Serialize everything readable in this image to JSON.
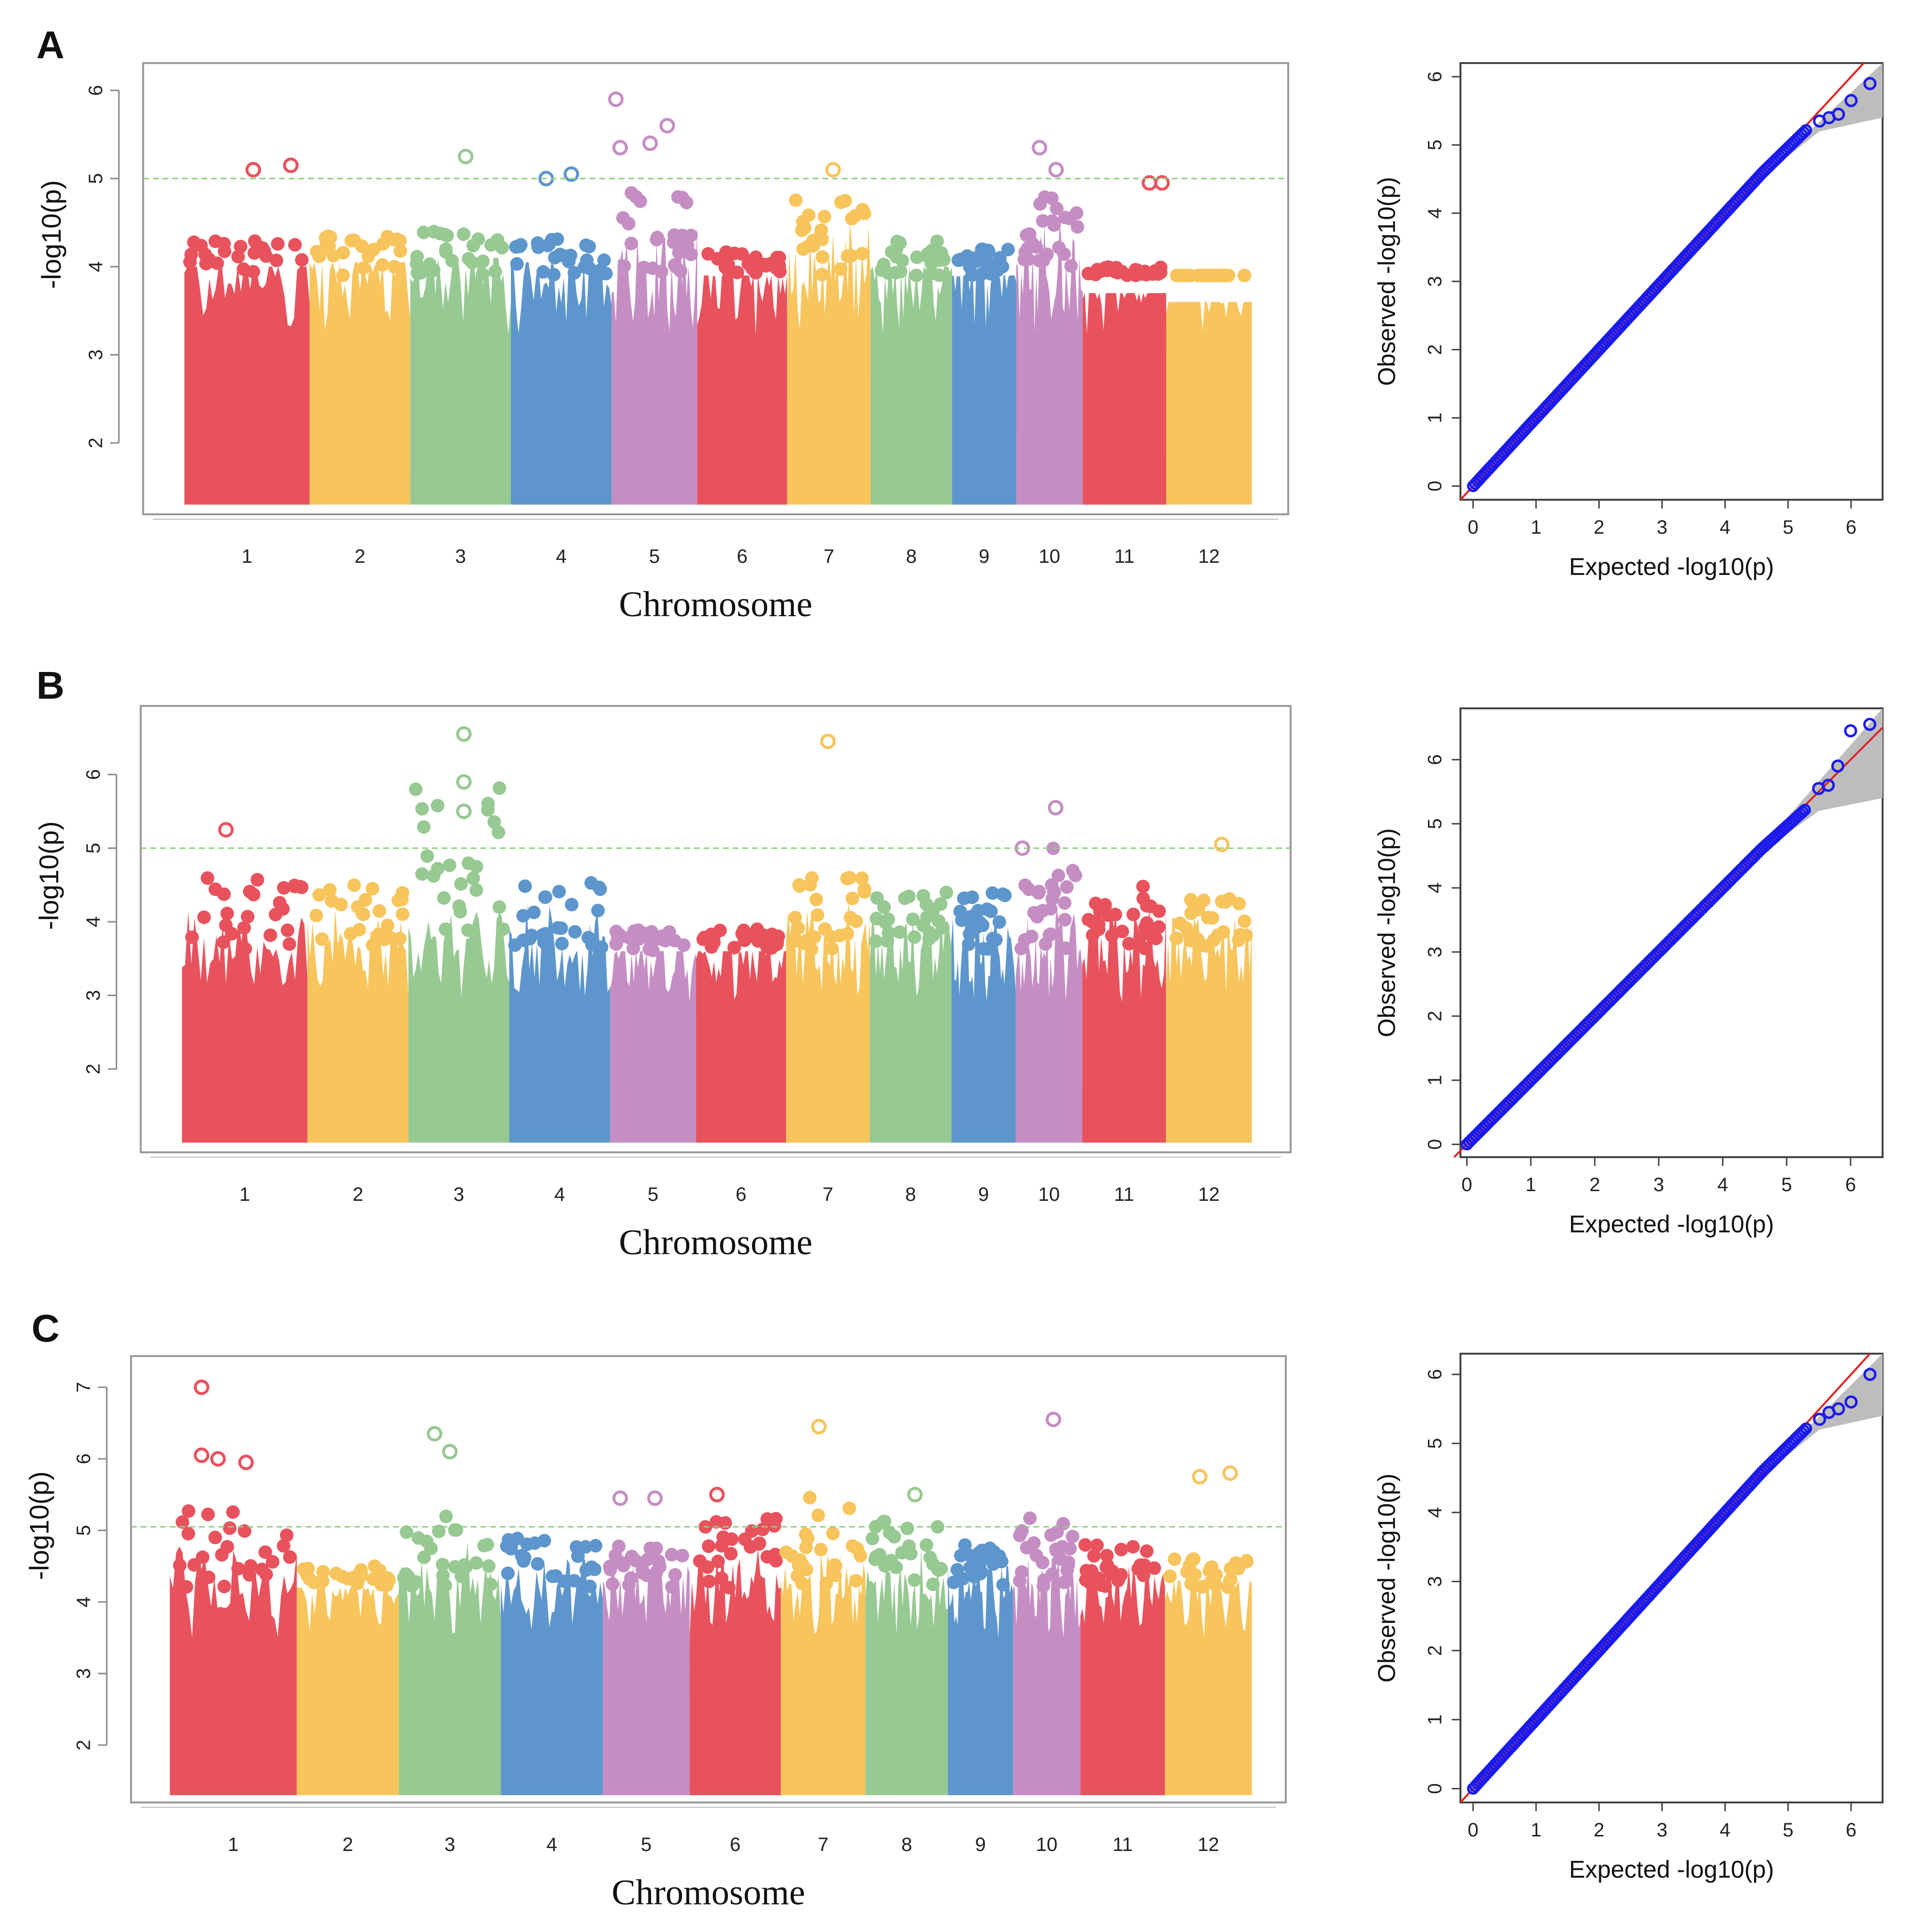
{
  "figure": {
    "panels": [
      "A",
      "B",
      "C"
    ],
    "chromosome_colors": [
      "#e8525d",
      "#f7c55c",
      "#97c992",
      "#5d96cc",
      "#c58ec3",
      "#e8525d",
      "#f7c55c",
      "#97c992",
      "#5d96cc",
      "#c58ec3",
      "#e8525d",
      "#f7c55c"
    ],
    "qq_point_color": "#1a1aee",
    "qq_line_color": "#e02020",
    "qq_band_color": "#bdbdbd",
    "threshold_color": "#8fcf7d"
  },
  "chart_data": [
    {
      "panel": "A",
      "type": "scatter",
      "subtype": "manhattan",
      "xlabel": "Chromosome",
      "ylabel": "-log10(p)",
      "categories": [
        "1",
        "2",
        "3",
        "4",
        "5",
        "6",
        "7",
        "8",
        "9",
        "10",
        "11",
        "12"
      ],
      "yticks": [
        "2",
        "3",
        "4",
        "5",
        "6"
      ],
      "ylim": [
        1.3,
        6.2
      ],
      "threshold": 5.0,
      "chromosome_top": [
        4.3,
        4.35,
        4.4,
        4.35,
        4.9,
        4.2,
        4.8,
        4.3,
        4.2,
        4.8,
        4.0,
        3.9
      ],
      "peaks": [
        {
          "chr": 1,
          "pos": 0.55,
          "value": 5.1
        },
        {
          "chr": 1,
          "pos": 0.85,
          "value": 5.15
        },
        {
          "chr": 3,
          "pos": 0.55,
          "value": 5.25
        },
        {
          "chr": 4,
          "pos": 0.35,
          "value": 5.0
        },
        {
          "chr": 4,
          "pos": 0.6,
          "value": 5.05
        },
        {
          "chr": 5,
          "pos": 0.05,
          "value": 5.9
        },
        {
          "chr": 5,
          "pos": 0.1,
          "value": 5.35
        },
        {
          "chr": 5,
          "pos": 0.45,
          "value": 5.4
        },
        {
          "chr": 5,
          "pos": 0.65,
          "value": 5.6
        },
        {
          "chr": 7,
          "pos": 0.55,
          "value": 5.1
        },
        {
          "chr": 10,
          "pos": 0.35,
          "value": 5.35
        },
        {
          "chr": 10,
          "pos": 0.6,
          "value": 5.1
        },
        {
          "chr": 11,
          "pos": 0.8,
          "value": 4.95
        },
        {
          "chr": 11,
          "pos": 0.95,
          "value": 4.95
        }
      ]
    },
    {
      "panel": "A",
      "type": "scatter",
      "subtype": "qq",
      "xlabel": "Expected -log10(p)",
      "ylabel": "Observed -log10(p)",
      "xticks": [
        "0",
        "1",
        "2",
        "3",
        "4",
        "5",
        "6"
      ],
      "yticks": [
        "0",
        "1",
        "2",
        "3",
        "4",
        "5",
        "6"
      ],
      "xlim": [
        -0.2,
        6.5
      ],
      "ylim": [
        -0.2,
        6.2
      ],
      "tail_points": [
        [
          5.5,
          5.35
        ],
        [
          5.65,
          5.4
        ],
        [
          5.8,
          5.45
        ],
        [
          6.0,
          5.65
        ],
        [
          6.3,
          5.9
        ]
      ]
    },
    {
      "panel": "B",
      "type": "scatter",
      "subtype": "manhattan",
      "xlabel": "Chromosome",
      "ylabel": "-log10(p)",
      "categories": [
        "1",
        "2",
        "3",
        "4",
        "5",
        "6",
        "7",
        "8",
        "9",
        "10",
        "11",
        "12"
      ],
      "yticks": [
        "2",
        "3",
        "4",
        "5",
        "6"
      ],
      "ylim": [
        1.0,
        6.8
      ],
      "threshold": 5.0,
      "chromosome_top": [
        4.6,
        4.5,
        5.9,
        4.55,
        3.9,
        3.9,
        4.6,
        4.5,
        4.4,
        5.0,
        4.55,
        4.35
      ],
      "peaks": [
        {
          "chr": 1,
          "pos": 0.35,
          "value": 5.25
        },
        {
          "chr": 3,
          "pos": 0.55,
          "value": 6.55
        },
        {
          "chr": 3,
          "pos": 0.55,
          "value": 5.9
        },
        {
          "chr": 3,
          "pos": 0.55,
          "value": 5.5
        },
        {
          "chr": 7,
          "pos": 0.5,
          "value": 6.45
        },
        {
          "chr": 10,
          "pos": 0.6,
          "value": 5.55
        },
        {
          "chr": 10,
          "pos": 0.1,
          "value": 5.0
        },
        {
          "chr": 12,
          "pos": 0.65,
          "value": 5.05
        }
      ]
    },
    {
      "panel": "B",
      "type": "scatter",
      "subtype": "qq",
      "xlabel": "Expected -log10(p)",
      "ylabel": "Observed -log10(p)",
      "xticks": [
        "0",
        "1",
        "2",
        "3",
        "4",
        "5",
        "6"
      ],
      "yticks": [
        "0",
        "1",
        "2",
        "3",
        "4",
        "5",
        "6"
      ],
      "xlim": [
        -0.1,
        6.5
      ],
      "ylim": [
        -0.2,
        6.8
      ],
      "tail_points": [
        [
          5.5,
          5.55
        ],
        [
          5.65,
          5.6
        ],
        [
          5.8,
          5.9
        ],
        [
          6.0,
          6.45
        ],
        [
          6.3,
          6.55
        ]
      ]
    },
    {
      "panel": "C",
      "type": "scatter",
      "subtype": "manhattan",
      "xlabel": "Chromosome",
      "ylabel": "-log10(p)",
      "categories": [
        "1",
        "2",
        "3",
        "4",
        "5",
        "6",
        "7",
        "8",
        "9",
        "10",
        "11",
        "12"
      ],
      "yticks": [
        "2",
        "3",
        "4",
        "5",
        "6",
        "7"
      ],
      "ylim": [
        1.3,
        7.3
      ],
      "threshold": 5.05,
      "chromosome_top": [
        5.3,
        4.5,
        5.3,
        4.9,
        4.8,
        5.2,
        5.5,
        5.2,
        4.8,
        5.3,
        4.8,
        4.6
      ],
      "peaks": [
        {
          "chr": 1,
          "pos": 0.25,
          "value": 7.0
        },
        {
          "chr": 1,
          "pos": 0.25,
          "value": 6.05
        },
        {
          "chr": 1,
          "pos": 0.38,
          "value": 6.0
        },
        {
          "chr": 1,
          "pos": 0.6,
          "value": 5.95
        },
        {
          "chr": 3,
          "pos": 0.35,
          "value": 6.35
        },
        {
          "chr": 3,
          "pos": 0.5,
          "value": 6.1
        },
        {
          "chr": 5,
          "pos": 0.2,
          "value": 5.45
        },
        {
          "chr": 5,
          "pos": 0.6,
          "value": 5.45
        },
        {
          "chr": 6,
          "pos": 0.3,
          "value": 5.5
        },
        {
          "chr": 7,
          "pos": 0.45,
          "value": 6.45
        },
        {
          "chr": 8,
          "pos": 0.6,
          "value": 5.5
        },
        {
          "chr": 10,
          "pos": 0.6,
          "value": 6.55
        },
        {
          "chr": 12,
          "pos": 0.4,
          "value": 5.75
        },
        {
          "chr": 12,
          "pos": 0.75,
          "value": 5.8
        }
      ]
    },
    {
      "panel": "C",
      "type": "scatter",
      "subtype": "qq",
      "xlabel": "Expected -log10(p)",
      "ylabel": "Observed -log10(p)",
      "xticks": [
        "0",
        "1",
        "2",
        "3",
        "4",
        "5",
        "6"
      ],
      "yticks": [
        "0",
        "1",
        "2",
        "3",
        "4",
        "5",
        "6"
      ],
      "xlim": [
        -0.2,
        6.5
      ],
      "ylim": [
        -0.2,
        6.3
      ],
      "tail_points": [
        [
          5.5,
          5.35
        ],
        [
          5.65,
          5.45
        ],
        [
          5.8,
          5.5
        ],
        [
          6.0,
          5.6
        ],
        [
          6.3,
          6.0
        ]
      ]
    }
  ]
}
